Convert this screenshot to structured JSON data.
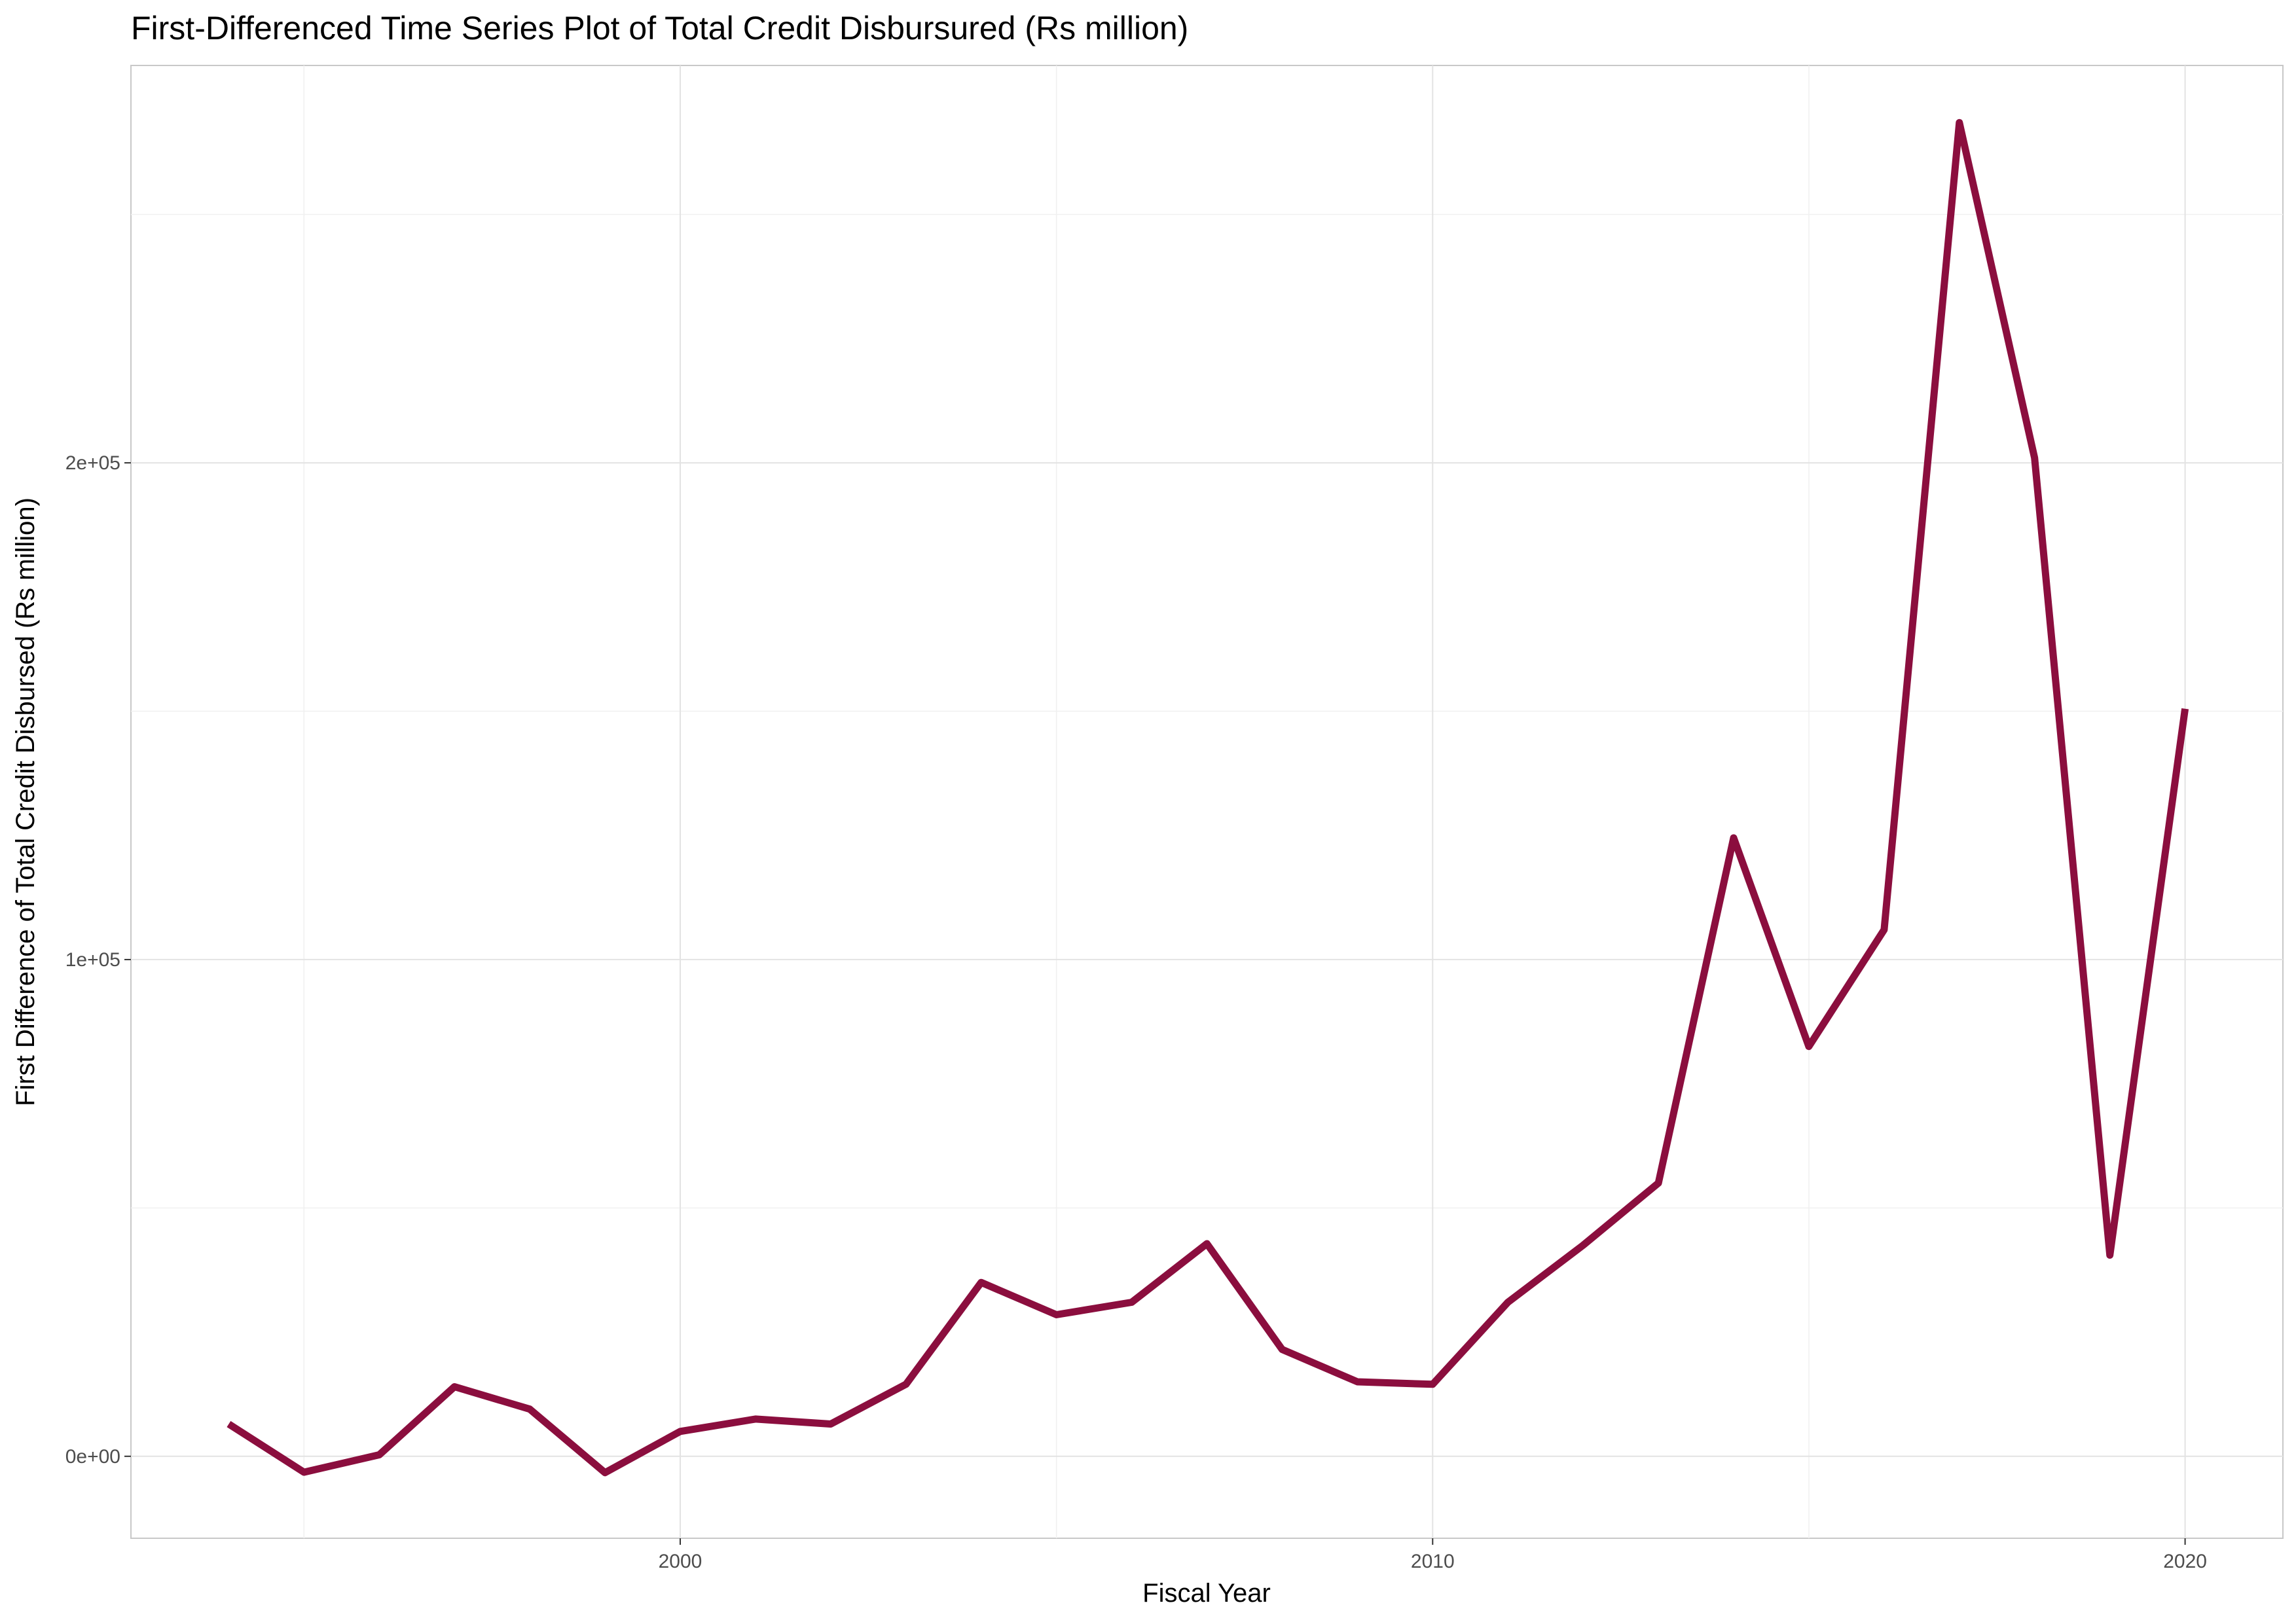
{
  "chart_data": {
    "type": "line",
    "title": "First-Differenced Time Series Plot of Total Credit Disbursured (Rs million)",
    "xlabel": "Fiscal Year",
    "ylabel": "First Difference of Total Credit Disbursed (Rs million)",
    "xlim": [
      1992.7,
      2021.3
    ],
    "ylim": [
      -16500,
      280000
    ],
    "x_ticks": [
      2000,
      2010,
      2020
    ],
    "x_tick_labels": [
      "2000",
      "2010",
      "2020"
    ],
    "y_ticks": [
      0,
      100000,
      200000
    ],
    "y_tick_labels": [
      "0e+00",
      "1e+05",
      "2e+05"
    ],
    "grid": true,
    "line_color": "#8b0e3e",
    "series": [
      {
        "x": [
          1994,
          1995,
          1996,
          1997,
          1998,
          1999,
          2000,
          2001,
          2002,
          2003,
          2004,
          2005,
          2006,
          2007,
          2008,
          2009,
          2010,
          2011,
          2012,
          2013,
          2014,
          2015,
          2016,
          2017,
          2018,
          2019,
          2020
        ],
        "values": [
          6500,
          -3200,
          300,
          14000,
          9500,
          -3300,
          5000,
          7500,
          6500,
          14500,
          35000,
          28500,
          31000,
          42800,
          21500,
          15000,
          14500,
          31000,
          42500,
          55000,
          124500,
          82500,
          106000,
          268500,
          201000,
          40500,
          150500
        ]
      }
    ]
  }
}
